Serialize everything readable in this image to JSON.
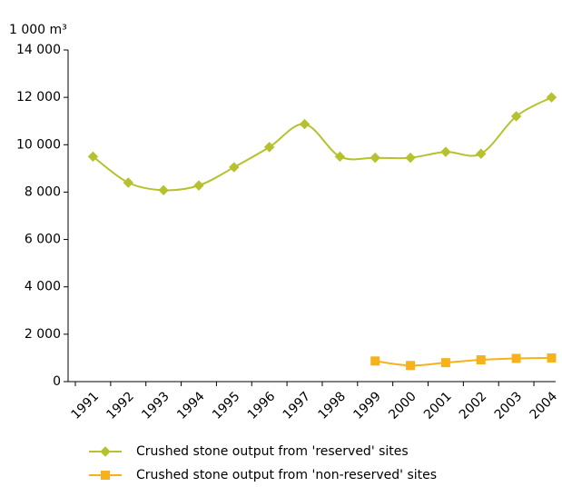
{
  "chart_data": {
    "type": "line",
    "y_label": "1 000 m³",
    "categories": [
      "1991",
      "1992",
      "1993",
      "1994",
      "1995",
      "1996",
      "1997",
      "1998",
      "1999",
      "2000",
      "2001",
      "2002",
      "2003",
      "2004"
    ],
    "series": [
      {
        "name": "Crushed stone output from 'reserved' sites",
        "color": "#b5c22e",
        "marker": "diamond",
        "values": [
          9500,
          8400,
          8080,
          8280,
          9050,
          9900,
          10870,
          9500,
          9450,
          9450,
          9700,
          9620,
          11200,
          12000
        ]
      },
      {
        "name": "Crushed stone output from 'non-reserved' sites",
        "color": "#f5b21c",
        "marker": "square",
        "values": [
          null,
          null,
          null,
          null,
          null,
          null,
          null,
          null,
          870,
          680,
          800,
          920,
          980,
          1000
        ]
      }
    ],
    "ylim": [
      0,
      14000
    ],
    "yticks": [
      0,
      {
        "value": 2000,
        "label": "2 000"
      },
      {
        "value": 4000,
        "label": "4 000"
      },
      {
        "value": 6000,
        "label": "6 000"
      },
      {
        "value": 8000,
        "label": "8 000"
      },
      {
        "value": 10000,
        "label": "10 000"
      },
      {
        "value": 12000,
        "label": "12 000"
      },
      {
        "value": 14000,
        "label": "14 000"
      }
    ],
    "legend": "bottom"
  }
}
